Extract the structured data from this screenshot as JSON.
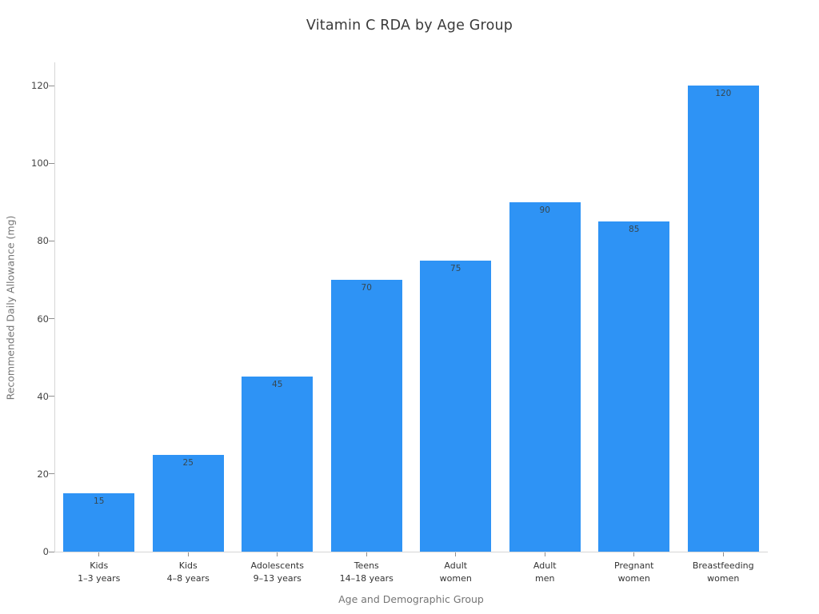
{
  "chart_data": {
    "type": "bar",
    "title": "Vitamin C RDA by Age Group",
    "xlabel": "Age and Demographic Group",
    "ylabel": "Recommended Daily Allowance (mg)",
    "categories": [
      "Kids\n1–3 years",
      "Kids\n4–8 years",
      "Adolescents\n9–13 years",
      "Teens\n14–18 years",
      "Adult\nwomen",
      "Adult\nmen",
      "Pregnant\nwomen",
      "Breastfeeding\nwomen"
    ],
    "values": [
      15,
      25,
      45,
      70,
      75,
      90,
      85,
      120
    ],
    "value_labels": [
      "15",
      "25",
      "45",
      "70",
      "75",
      "90",
      "85",
      "120"
    ],
    "yticks": [
      0,
      20,
      40,
      60,
      80,
      100,
      120
    ],
    "ylim": [
      0,
      126
    ],
    "grid": false,
    "legend": "none",
    "bar_color": "#2E93F5",
    "value_label_color": "#37474F",
    "axis_line_color": "#D6D6D6",
    "tick_mark_color": "#8F8F8F",
    "background_color": "#FFFFFF"
  }
}
